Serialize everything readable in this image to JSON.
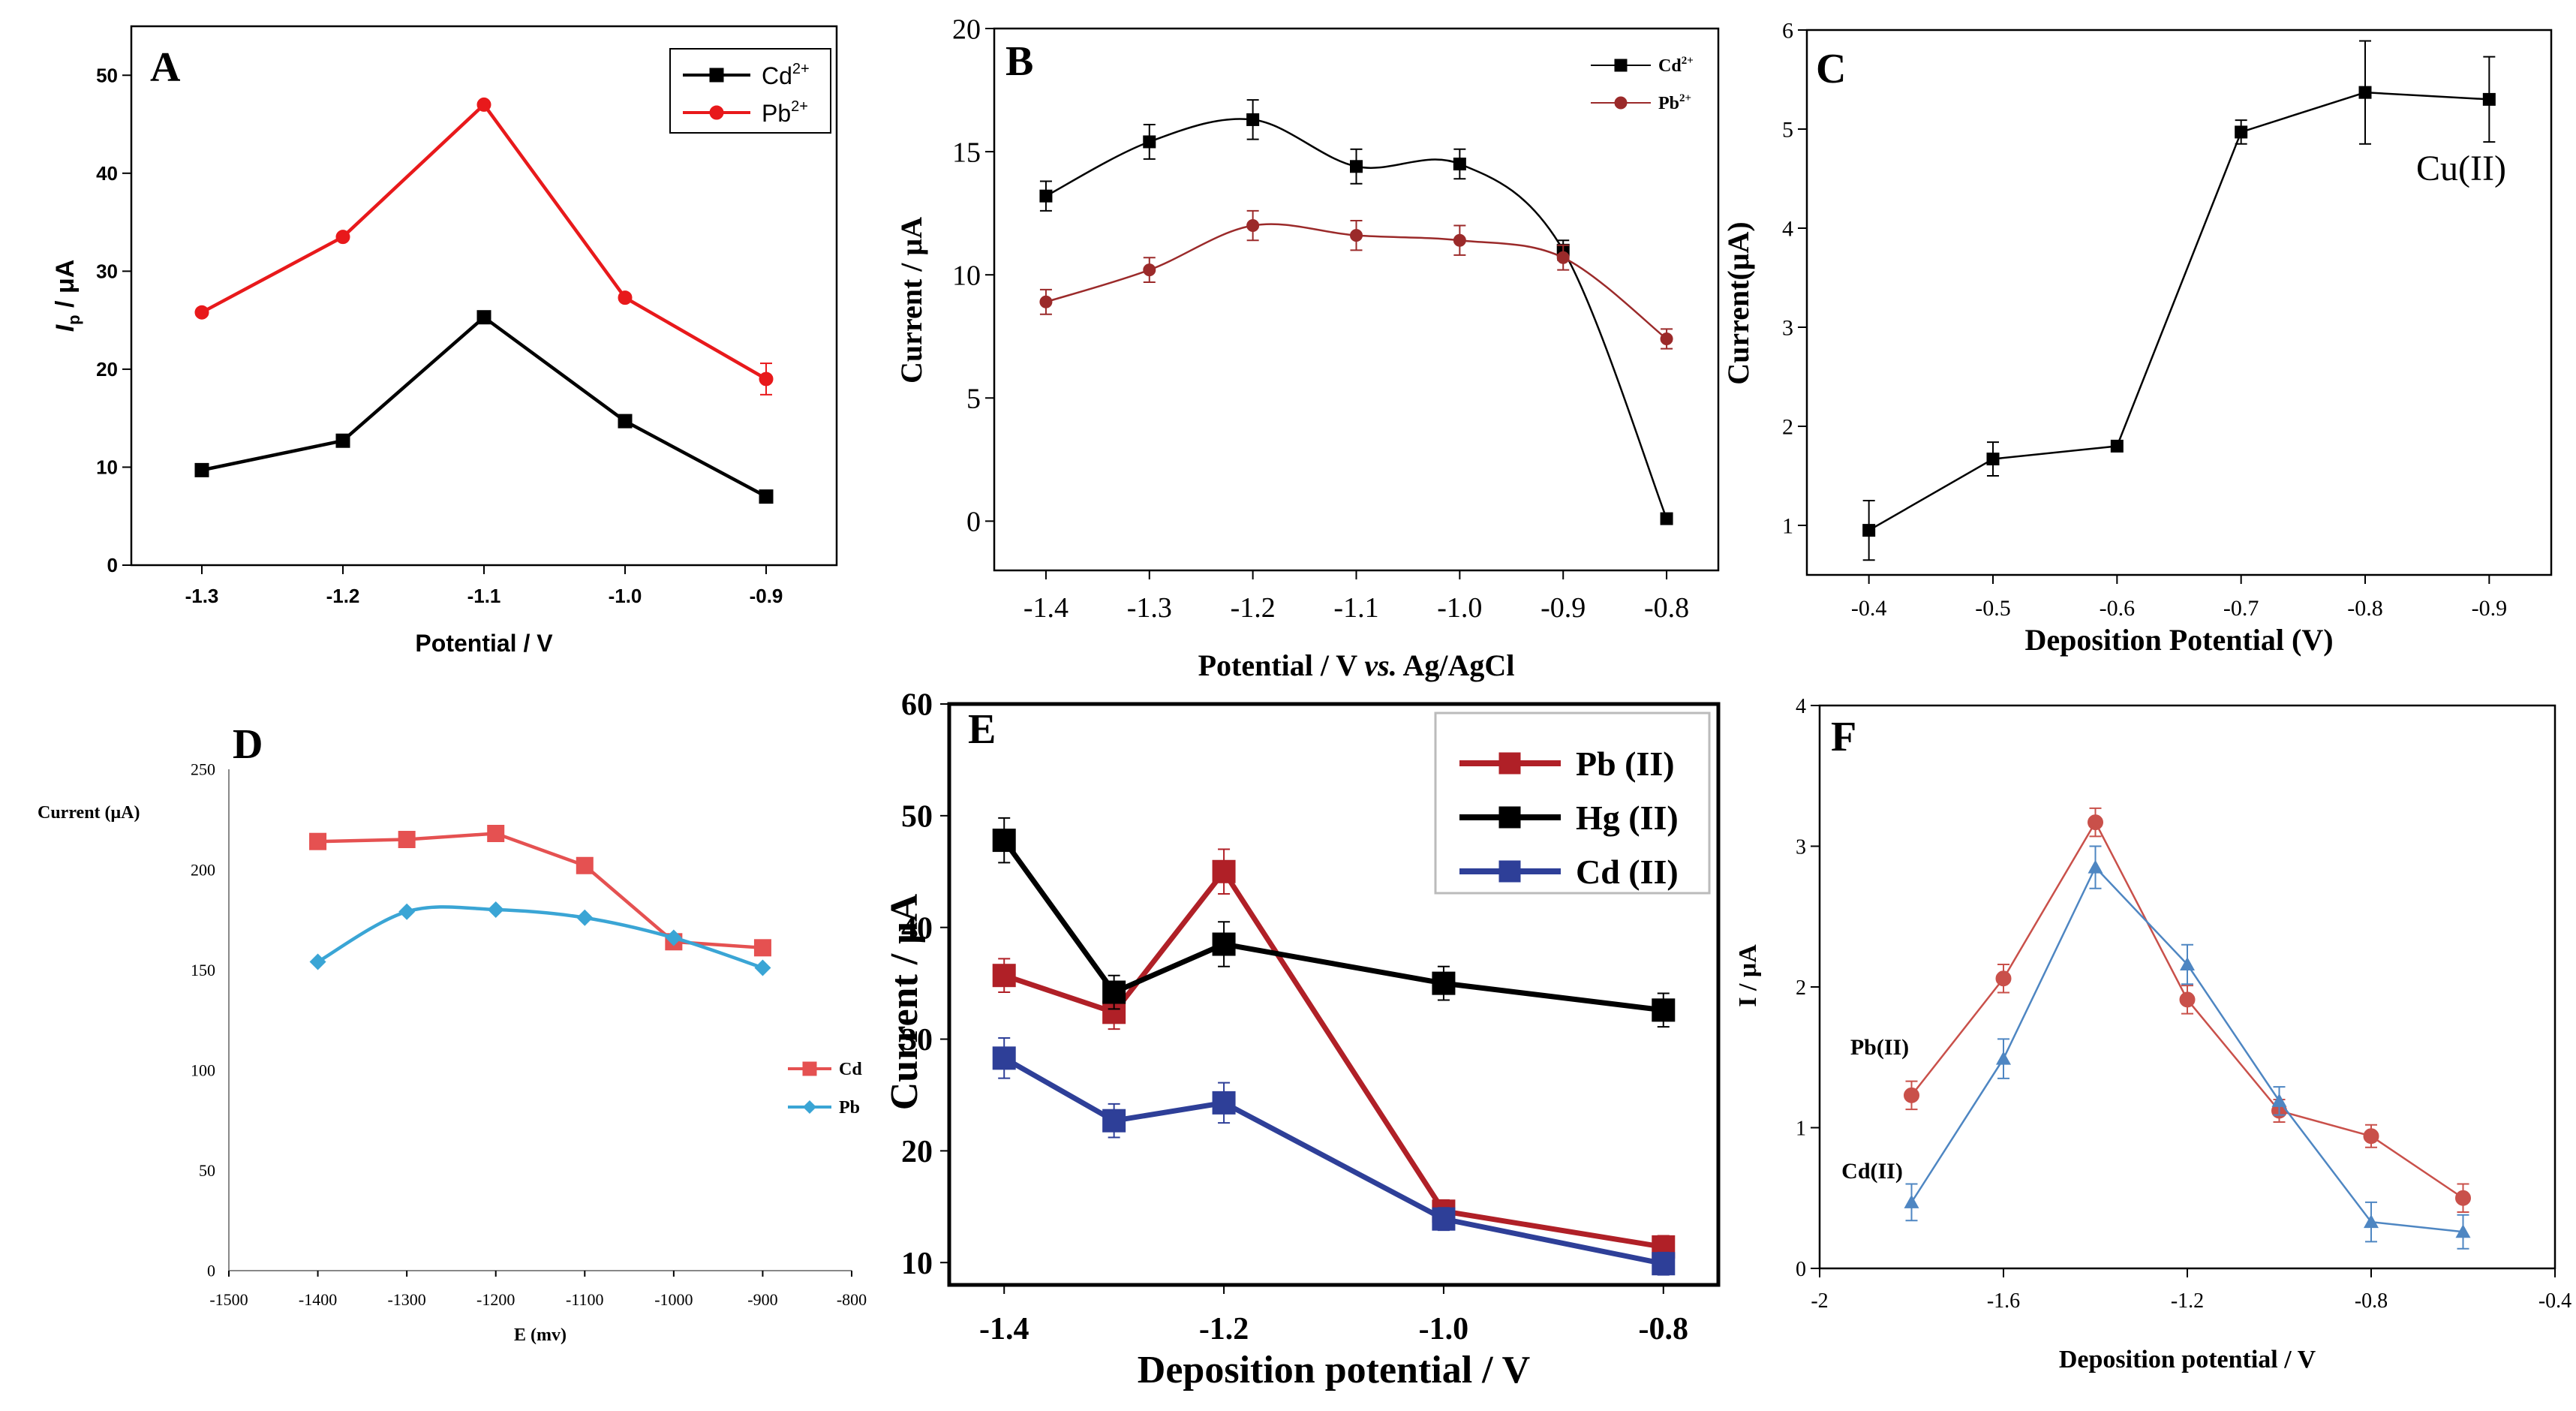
{
  "chart_data": [
    {
      "panel": "A",
      "type": "line",
      "xlabel": "Potential / V",
      "ylabel_main": "I",
      "ylabel_sub": "p",
      "ylabel_unit": " / μA",
      "x": [
        -1.3,
        -1.2,
        -1.1,
        -1.0,
        -0.9
      ],
      "xlim": [
        -1.35,
        -0.85
      ],
      "ylim": [
        0,
        55
      ],
      "reverse_x": false,
      "xticks": [
        -1.3,
        -1.2,
        -1.1,
        -1.0,
        -0.9
      ],
      "xtick_labels": [
        "-1.3",
        "-1.2",
        "-1.1",
        "-1.0",
        "-0.9"
      ],
      "yticks": [
        0,
        10,
        20,
        30,
        40,
        50
      ],
      "ytick_labels": [
        "0",
        "10",
        "20",
        "30",
        "40",
        "50"
      ],
      "legend": "top-right",
      "series": [
        {
          "name": "Cd",
          "sup": "2+",
          "color": "#000000",
          "marker": "square",
          "values": [
            9.7,
            12.7,
            25.3,
            14.7,
            7.0
          ]
        },
        {
          "name": "Pb",
          "sup": "2+",
          "color": "#e8191b",
          "marker": "circle",
          "values": [
            25.8,
            33.5,
            47.0,
            27.3,
            19.0
          ],
          "errors": [
            0,
            0,
            0,
            0,
            1.6
          ]
        }
      ]
    },
    {
      "panel": "B",
      "type": "line",
      "xlabel_pre": "Potential / V ",
      "xlabel_em": "vs.",
      "xlabel_post": " Ag/AgCl",
      "ylabel": "Current / μA",
      "x": [
        -1.4,
        -1.3,
        -1.2,
        -1.1,
        -1.0,
        -0.9,
        -0.8
      ],
      "xlim": [
        -1.45,
        -0.75
      ],
      "ylim": [
        -2,
        20
      ],
      "reverse_x": false,
      "xticks": [
        -1.4,
        -1.3,
        -1.2,
        -1.1,
        -1.0,
        -0.9,
        -0.8
      ],
      "xtick_labels": [
        "-1.4",
        "-1.3",
        "-1.2",
        "-1.1",
        "-1.0",
        "-0.9",
        "-0.8"
      ],
      "yticks": [
        0,
        5,
        10,
        15,
        20
      ],
      "ytick_labels": [
        "0",
        "5",
        "10",
        "15",
        "20"
      ],
      "legend": "top-right",
      "series": [
        {
          "name": "Cd",
          "sup": "2+",
          "color": "#000000",
          "marker": "square",
          "values": [
            13.2,
            15.4,
            16.3,
            14.4,
            14.5,
            11.0,
            0.1
          ],
          "errors": [
            0.6,
            0.7,
            0.8,
            0.7,
            0.6,
            0.4,
            0.1
          ]
        },
        {
          "name": "Pb",
          "sup": "2+",
          "color": "#9b2a2a",
          "marker": "circle",
          "values": [
            8.9,
            10.2,
            12.0,
            11.6,
            11.4,
            10.7,
            7.4
          ],
          "errors": [
            0.5,
            0.5,
            0.6,
            0.6,
            0.6,
            0.5,
            0.4
          ]
        }
      ]
    },
    {
      "panel": "C",
      "type": "line",
      "xlabel": "Deposition Potential (V)",
      "ylabel": "Current(μA)",
      "annotation": "Cu(II)",
      "x": [
        -0.4,
        -0.5,
        -0.6,
        -0.7,
        -0.8,
        -0.9
      ],
      "xlim": [
        -0.35,
        -0.95
      ],
      "ylim": [
        0.5,
        6
      ],
      "reverse_x": true,
      "xticks": [
        -0.4,
        -0.5,
        -0.6,
        -0.7,
        -0.8,
        -0.9
      ],
      "xtick_labels": [
        "-0.4",
        "-0.5",
        "-0.6",
        "-0.7",
        "-0.8",
        "-0.9"
      ],
      "yticks": [
        1,
        2,
        3,
        4,
        5,
        6
      ],
      "ytick_labels": [
        "1",
        "2",
        "3",
        "4",
        "5",
        "6"
      ],
      "series": [
        {
          "name": "Cu(II)",
          "color": "#000000",
          "marker": "square",
          "values": [
            0.95,
            1.67,
            1.8,
            4.97,
            5.37,
            5.3
          ],
          "errors": [
            0.3,
            0.17,
            0.05,
            0.12,
            0.52,
            0.43
          ]
        }
      ]
    },
    {
      "panel": "D",
      "type": "line",
      "xlabel": "E (mv)",
      "ylabel": "Current (μA)",
      "x": [
        -1400,
        -1300,
        -1200,
        -1100,
        -1000,
        -900
      ],
      "xlim": [
        -1500,
        -800
      ],
      "ylim": [
        0,
        250
      ],
      "reverse_x": false,
      "xticks": [
        -1500,
        -1400,
        -1300,
        -1200,
        -1100,
        -1000,
        -900,
        -800
      ],
      "xtick_labels": [
        "-1500",
        "-1400",
        "-1300",
        "-1200",
        "-1100",
        "-1000",
        "-900",
        "-800"
      ],
      "yticks": [
        0,
        50,
        100,
        150,
        200,
        250
      ],
      "ytick_labels": [
        "0",
        "50",
        "100",
        "150",
        "200",
        "250"
      ],
      "legend": "right",
      "series": [
        {
          "name": "Cd",
          "color": "#e55151",
          "marker": "square",
          "values": [
            214,
            215,
            218,
            202,
            164,
            161
          ]
        },
        {
          "name": "Pb",
          "color": "#3aa5d5",
          "marker": "diamond",
          "values": [
            154,
            179,
            180,
            176,
            166,
            151
          ]
        }
      ]
    },
    {
      "panel": "E",
      "type": "line",
      "xlabel": "Deposition potential / V",
      "ylabel": "Current / μA",
      "x": [
        -1.4,
        -1.3,
        -1.2,
        -1.0,
        -0.8
      ],
      "xlim": [
        -1.45,
        -0.75
      ],
      "ylim": [
        8,
        60
      ],
      "reverse_x": false,
      "xticks": [
        -1.4,
        -1.2,
        -1.0,
        -0.8
      ],
      "xtick_labels": [
        "-1.4",
        "-1.2",
        "-1.0",
        "-0.8"
      ],
      "yticks": [
        10,
        20,
        30,
        40,
        50,
        60
      ],
      "ytick_labels": [
        "10",
        "20",
        "30",
        "40",
        "50",
        "60"
      ],
      "legend": "top-right",
      "series": [
        {
          "name": "Pb (II)",
          "color": "#b02027",
          "marker": "square",
          "values": [
            35.7,
            32.4,
            45.0,
            14.6,
            11.4
          ],
          "errors": [
            1.5,
            1.5,
            2.0,
            1.0,
            1.0
          ]
        },
        {
          "name": "Hg (II)",
          "color": "#000000",
          "marker": "square",
          "values": [
            47.8,
            34.2,
            38.5,
            35.0,
            32.6
          ],
          "errors": [
            2.0,
            1.5,
            2.0,
            1.5,
            1.5
          ]
        },
        {
          "name": "Cd (II)",
          "color": "#2e3f98",
          "marker": "square",
          "values": [
            28.3,
            22.7,
            24.3,
            13.9,
            9.9
          ],
          "errors": [
            1.8,
            1.5,
            1.8,
            1.0,
            1.0
          ]
        }
      ]
    },
    {
      "panel": "F",
      "type": "line",
      "xlabel": "Deposition potential / V",
      "ylabel": "I / μA",
      "x": [
        -1.8,
        -1.6,
        -1.4,
        -1.2,
        -1.0,
        -0.8,
        -0.6
      ],
      "xlim": [
        -2.0,
        -0.4
      ],
      "ylim": [
        0,
        4
      ],
      "reverse_x": false,
      "xticks": [
        -2.0,
        -1.6,
        -1.2,
        -0.8,
        -0.4
      ],
      "xtick_labels": [
        "-2",
        "-1.6",
        "-1.2",
        "-0.8",
        "-0.4"
      ],
      "yticks": [
        0,
        1,
        2,
        3,
        4
      ],
      "ytick_labels": [
        "0",
        "1",
        "2",
        "3",
        "4"
      ],
      "series": [
        {
          "name": "Pb(II)",
          "color": "#c9504a",
          "marker": "circle",
          "values": [
            1.23,
            2.06,
            3.17,
            1.91,
            1.12,
            0.94,
            0.5
          ],
          "errors": [
            0.1,
            0.1,
            0.1,
            0.1,
            0.08,
            0.08,
            0.1
          ]
        },
        {
          "name": "Cd(II)",
          "color": "#4e86c2",
          "marker": "triangle",
          "values": [
            0.47,
            1.49,
            2.85,
            2.16,
            1.19,
            0.33,
            0.26
          ],
          "errors": [
            0.13,
            0.14,
            0.15,
            0.14,
            0.1,
            0.14,
            0.12
          ]
        }
      ]
    }
  ]
}
